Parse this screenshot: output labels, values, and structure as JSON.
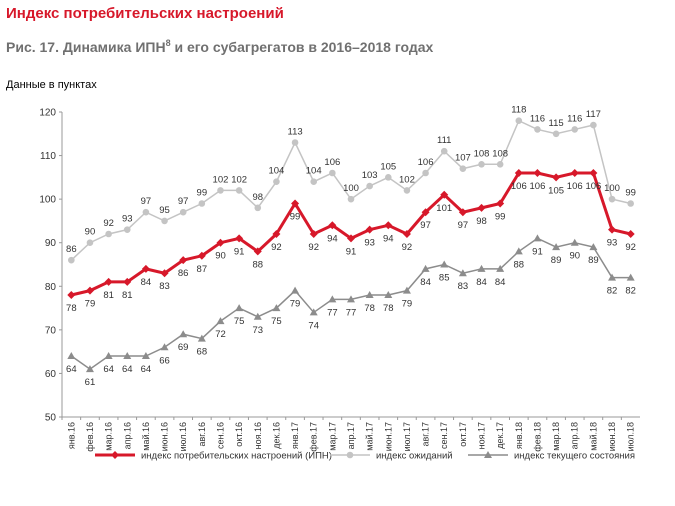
{
  "chart_data": {
    "type": "line",
    "title": "Индекс потребительских настроений",
    "subtitle": "Рис. 17. Динамика ИПН",
    "subtitle_superscript": "8",
    "subtitle_end": " и его субагрегатов в 2016–2018 годах",
    "ylabel": "Данные в пунктах",
    "categories": [
      "янв.16",
      "фев.16",
      "мар.16",
      "апр.16",
      "май.16",
      "июн.16",
      "июл.16",
      "авг.16",
      "сен.16",
      "окт.16",
      "ноя.16",
      "дек.16",
      "янв.17",
      "фев.17",
      "мар.17",
      "апр.17",
      "май.17",
      "июн.17",
      "июл.17",
      "авг.17",
      "сен.17",
      "окт.17",
      "ноя.17",
      "дек.17",
      "янв.18",
      "фев.18",
      "мар.18",
      "апр.18",
      "май.18",
      "июн.18",
      "июл.18"
    ],
    "ylim": [
      50,
      120
    ],
    "yticks": [
      50,
      60,
      70,
      80,
      90,
      100,
      110,
      120
    ],
    "grid": false,
    "legend": "bottom",
    "series": [
      {
        "name": "индекс потребительских настроений (ИПН)",
        "color": "#d7182a",
        "marker": "diamond",
        "label_position": "below",
        "values": [
          78,
          79,
          81,
          81,
          84,
          83,
          86,
          87,
          90,
          91,
          88,
          92,
          99,
          92,
          94,
          91,
          93,
          94,
          92,
          97,
          101,
          97,
          98,
          99,
          106,
          106,
          105,
          106,
          106,
          93,
          92
        ]
      },
      {
        "name": "индекс ожиданий",
        "color": "#c4c4c4",
        "marker": "circle",
        "label_position": "above",
        "values": [
          86,
          90,
          92,
          93,
          97,
          95,
          97,
          99,
          102,
          102,
          98,
          104,
          113,
          104,
          106,
          100,
          103,
          105,
          102,
          106,
          111,
          107,
          108,
          108,
          118,
          116,
          115,
          116,
          117,
          100,
          99
        ]
      },
      {
        "name": "индекс текущего состояния",
        "color": "#8c8c8c",
        "marker": "triangle",
        "label_position": "below",
        "values": [
          64,
          61,
          64,
          64,
          64,
          66,
          69,
          68,
          72,
          75,
          73,
          75,
          79,
          74,
          77,
          77,
          78,
          78,
          79,
          84,
          85,
          83,
          84,
          84,
          88,
          91,
          89,
          90,
          89,
          82,
          82
        ]
      }
    ]
  }
}
